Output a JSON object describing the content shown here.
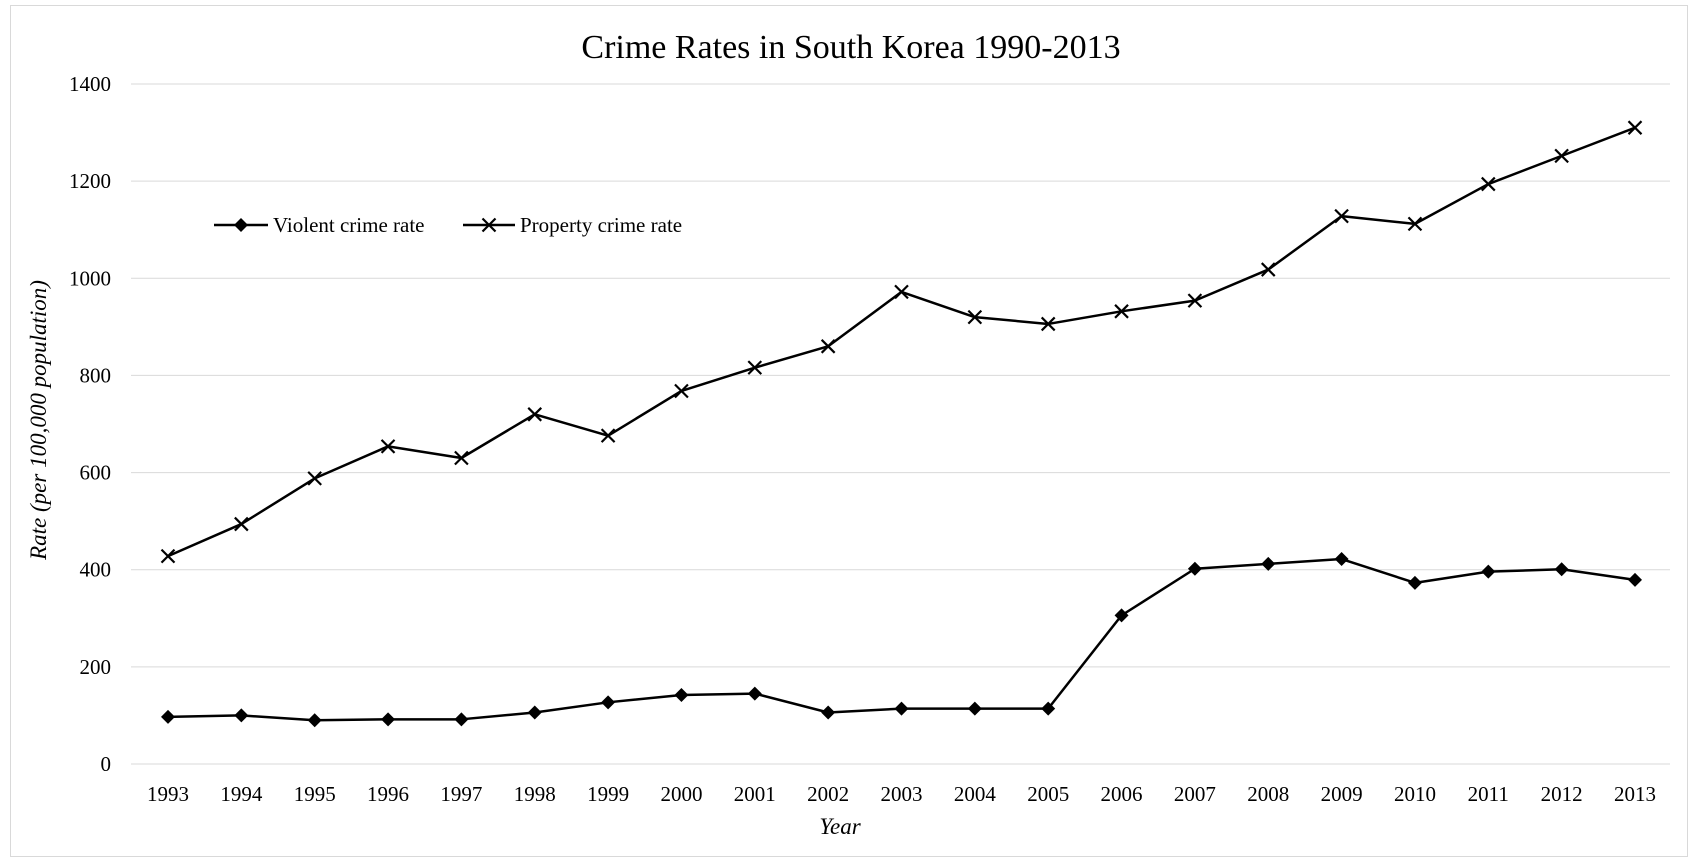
{
  "chart_data": {
    "type": "line",
    "title": "Crime Rates in South Korea 1990-2013",
    "xlabel": "Year",
    "ylabel": "Rate (per 100,000 population)",
    "ylim": [
      0,
      1400
    ],
    "yticks": [
      0,
      200,
      400,
      600,
      800,
      1000,
      1200,
      1400
    ],
    "grid": "horizontal",
    "legend_position": "top-left",
    "categories": [
      "1993",
      "1994",
      "1995",
      "1996",
      "1997",
      "1998",
      "1999",
      "2000",
      "2001",
      "2002",
      "2003",
      "2004",
      "2005",
      "2006",
      "2007",
      "2008",
      "2009",
      "2010",
      "2011",
      "2012",
      "2013"
    ],
    "series": [
      {
        "name": "Violent crime rate",
        "marker": "diamond",
        "color": "#000000",
        "values": [
          97,
          100,
          90,
          92,
          92,
          106,
          127,
          142,
          145,
          106,
          114,
          114,
          114,
          306,
          402,
          412,
          422,
          373,
          396,
          401,
          379
        ]
      },
      {
        "name": "Property crime rate",
        "marker": "x",
        "color": "#000000",
        "values": [
          428,
          494,
          588,
          654,
          630,
          720,
          676,
          768,
          816,
          860,
          972,
          920,
          906,
          932,
          954,
          1018,
          1128,
          1112,
          1194,
          1252,
          1310
        ]
      }
    ]
  }
}
